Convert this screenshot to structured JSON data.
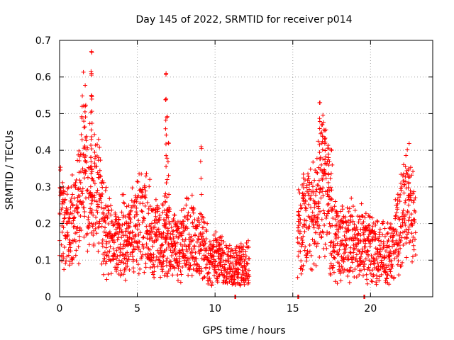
{
  "chart_data": {
    "type": "scatter",
    "title": "Day 145 of 2022, SRMTID for receiver p014",
    "xlabel": "GPS time / hours",
    "ylabel": "SRMTID / TECUs",
    "xlim": [
      0,
      24
    ],
    "ylim": [
      0,
      0.7
    ],
    "x_ticks": [
      0,
      5,
      10,
      15,
      20
    ],
    "y_ticks": [
      0,
      0.1,
      0.2,
      0.3,
      0.4,
      0.5,
      0.6,
      0.7
    ],
    "y_tick_labels": [
      "0",
      "0.1",
      "0.2",
      "0.3",
      "0.4",
      "0.5",
      "0.6",
      "0.7"
    ],
    "grid": true,
    "marker": "+",
    "series_color": "#ff0000",
    "profile_x": [
      0.0,
      0.3,
      0.6,
      1.0,
      1.3,
      1.5,
      1.8,
      2.1,
      2.4,
      2.8,
      3.2,
      3.6,
      4.0,
      4.5,
      5.0,
      5.5,
      6.0,
      6.5,
      6.9,
      7.3,
      7.8,
      8.3,
      8.8,
      9.2,
      9.6,
      10.0,
      10.5,
      11.0,
      11.5,
      12.2,
      15.3,
      15.7,
      16.1,
      16.5,
      16.8,
      17.1,
      17.4,
      17.8,
      18.2,
      18.6,
      19.0,
      19.5,
      20.0,
      20.5,
      21.0,
      21.5,
      22.0,
      22.5,
      22.9
    ],
    "profile_y": [
      0.23,
      0.2,
      0.17,
      0.22,
      0.28,
      0.38,
      0.3,
      0.27,
      0.28,
      0.2,
      0.16,
      0.14,
      0.17,
      0.15,
      0.2,
      0.21,
      0.17,
      0.15,
      0.16,
      0.13,
      0.14,
      0.17,
      0.15,
      0.13,
      0.1,
      0.11,
      0.09,
      0.08,
      0.08,
      0.09,
      0.17,
      0.21,
      0.2,
      0.22,
      0.32,
      0.33,
      0.21,
      0.15,
      0.15,
      0.16,
      0.14,
      0.15,
      0.13,
      0.12,
      0.12,
      0.15,
      0.22,
      0.25,
      0.21
    ],
    "peaks": [
      {
        "x": 1.65,
        "y": 0.52
      },
      {
        "x": 2.05,
        "y": 0.67
      },
      {
        "x": 2.05,
        "y": 0.61
      },
      {
        "x": 2.05,
        "y": 0.55
      },
      {
        "x": 6.85,
        "y": 0.61
      },
      {
        "x": 6.85,
        "y": 0.54
      },
      {
        "x": 6.9,
        "y": 0.49
      },
      {
        "x": 7.0,
        "y": 0.42
      },
      {
        "x": 9.1,
        "y": 0.41
      },
      {
        "x": 16.75,
        "y": 0.53
      },
      {
        "x": 16.9,
        "y": 0.47
      },
      {
        "x": 17.05,
        "y": 0.43
      },
      {
        "x": 17.3,
        "y": 0.38
      },
      {
        "x": 17.5,
        "y": 0.4
      },
      {
        "x": 22.45,
        "y": 0.35
      }
    ],
    "zero_markers": [
      11.3,
      15.35,
      19.6
    ]
  }
}
